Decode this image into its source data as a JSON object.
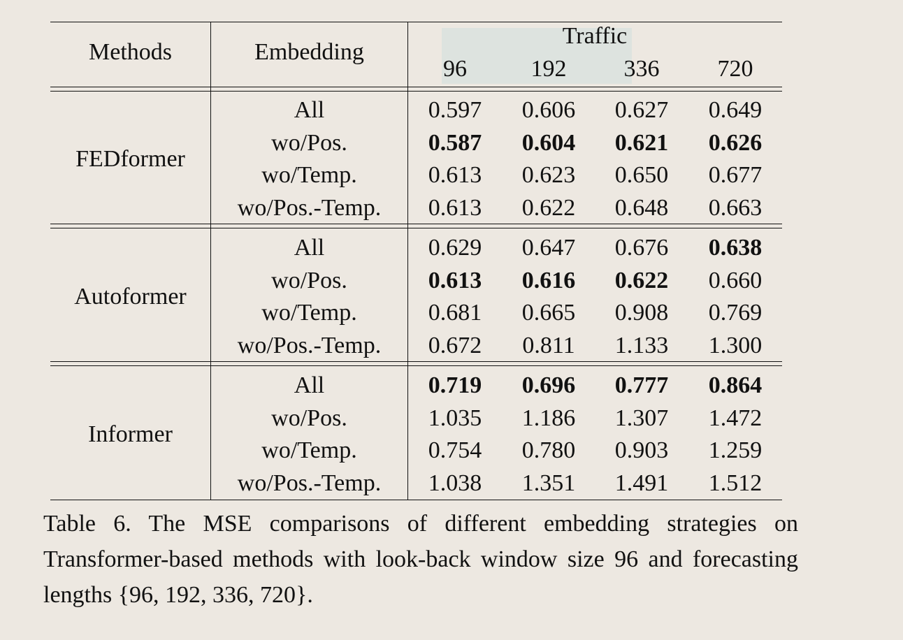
{
  "table": {
    "headers": {
      "methods": "Methods",
      "embedding": "Embedding",
      "dataset": "Traffic"
    },
    "horizons": [
      "96",
      "192",
      "336",
      "720"
    ],
    "groups": [
      {
        "method": "FEDformer",
        "rows": [
          {
            "embedding": "All",
            "values": [
              "0.597",
              "0.606",
              "0.627",
              "0.649"
            ],
            "bold": [
              false,
              false,
              false,
              false
            ]
          },
          {
            "embedding": "wo/Pos.",
            "values": [
              "0.587",
              "0.604",
              "0.621",
              "0.626"
            ],
            "bold": [
              true,
              true,
              true,
              true
            ]
          },
          {
            "embedding": "wo/Temp.",
            "values": [
              "0.613",
              "0.623",
              "0.650",
              "0.677"
            ],
            "bold": [
              false,
              false,
              false,
              false
            ]
          },
          {
            "embedding": "wo/Pos.-Temp.",
            "values": [
              "0.613",
              "0.622",
              "0.648",
              "0.663"
            ],
            "bold": [
              false,
              false,
              false,
              false
            ]
          }
        ]
      },
      {
        "method": "Autoformer",
        "rows": [
          {
            "embedding": "All",
            "values": [
              "0.629",
              "0.647",
              "0.676",
              "0.638"
            ],
            "bold": [
              false,
              false,
              false,
              true
            ]
          },
          {
            "embedding": "wo/Pos.",
            "values": [
              "0.613",
              "0.616",
              "0.622",
              "0.660"
            ],
            "bold": [
              true,
              true,
              true,
              false
            ]
          },
          {
            "embedding": "wo/Temp.",
            "values": [
              "0.681",
              "0.665",
              "0.908",
              "0.769"
            ],
            "bold": [
              false,
              false,
              false,
              false
            ]
          },
          {
            "embedding": "wo/Pos.-Temp.",
            "values": [
              "0.672",
              "0.811",
              "1.133",
              "1.300"
            ],
            "bold": [
              false,
              false,
              false,
              false
            ]
          }
        ]
      },
      {
        "method": "Informer",
        "rows": [
          {
            "embedding": "All",
            "values": [
              "0.719",
              "0.696",
              "0.777",
              "0.864"
            ],
            "bold": [
              true,
              true,
              true,
              true
            ]
          },
          {
            "embedding": "wo/Pos.",
            "values": [
              "1.035",
              "1.186",
              "1.307",
              "1.472"
            ],
            "bold": [
              false,
              false,
              false,
              false
            ]
          },
          {
            "embedding": "wo/Temp.",
            "values": [
              "0.754",
              "0.780",
              "0.903",
              "1.259"
            ],
            "bold": [
              false,
              false,
              false,
              false
            ]
          },
          {
            "embedding": "wo/Pos.-Temp.",
            "values": [
              "1.038",
              "1.351",
              "1.491",
              "1.512"
            ],
            "bold": [
              false,
              false,
              false,
              false
            ]
          }
        ]
      }
    ]
  },
  "caption": "Table 6.  The MSE comparisons of different embedding strategies on Transformer-based methods with look-back window size 96 and forecasting lengths {96, 192, 336, 720}.",
  "colors": {
    "background": "#ede8e1",
    "header_highlight": "#dde3df",
    "text": "#111111"
  }
}
